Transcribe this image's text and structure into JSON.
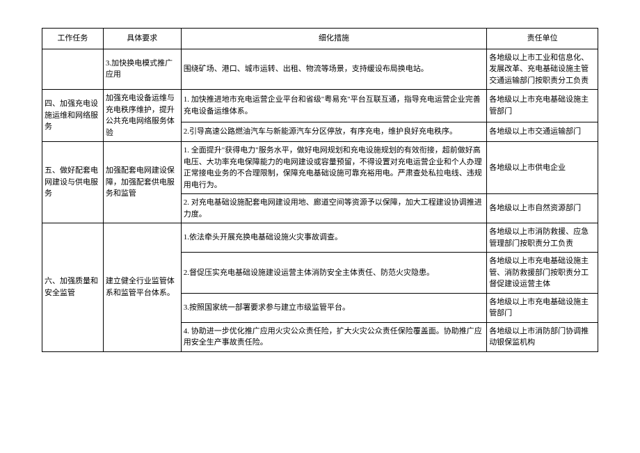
{
  "headers": {
    "task": "工作任务",
    "requirement": "具体要求",
    "measure": "细化措施",
    "unit": "责任单位"
  },
  "rows": [
    {
      "task": "",
      "requirement": "",
      "measure": "3.加快换电模式推广应用",
      "measure_detail": "围绕矿场、港口、城市运转、出租、物流等场景，支持缓设布局换电站。",
      "unit": "各地级以上市工业和信息化、发展改革、充电基础设施主管交通运输部门按职责分工负责"
    },
    {
      "task": "四、加强充电设施运维和网络服务",
      "task_rowspan": 2,
      "requirement": "加强充电设备运维与充电秩序维护，提升公共充电网络服务体验",
      "req_rowspan": 2,
      "measure": "1. 加快推进地市充电运营企业平台和省级\"粤易充\"平台互联互通，指导充电运营企业完善充电设备运维体系。",
      "unit": "各地级以上市充电基础设施主管部门"
    },
    {
      "measure": "2.引导高速公路燃油汽车与新能源汽车分区停放，有序充电，维护良好充电秩序。",
      "unit": "各地级以上市交通运输部门"
    },
    {
      "task": "五、做好配套电网建设与供电服务",
      "task_rowspan": 2,
      "requirement": "加强配套电网建设保障，加强配套供电服务和监管",
      "req_rowspan": 2,
      "measure": "1. 全面提升\"获得电力\"服务水平，做好电网规划和充电设施规划的有效衔接，超前做好高电压、大功率充电保障能力的电网建设或容量预留，不得设置对充电运营企业和个人办理正常接电业务的不合理限制，保障充电基础设施可靠充裕用电。严肃查处私拉电线、违规用电行为。",
      "unit": "各地级以上市供电企业"
    },
    {
      "measure": "2. 对充电基础设施配套电网建设用地、廊道空间等资源予以保障，加大工程建设协调推进力度。",
      "unit": "各地级以上市自然资源部门"
    },
    {
      "task": "六、加强质量和安全监管",
      "task_rowspan": 4,
      "requirement": "建立健全行业监管体系和监管平台体系。",
      "req_rowspan": 4,
      "measure": "1.依法牵头开展充换电基础设施火灾事故调查。",
      "unit": "各地级以上市消防救援、应急管理部门按职责分工负责"
    },
    {
      "measure": "2.督促压实充电基础设施建设运营主体消防安全主体责任、防范火灾隐患。",
      "unit": "各地级以上市充电基础设施主管、消防救援部门按职责分工督促建设运营主体"
    },
    {
      "measure": "3.按照国家统一部署要求参与建立市级监管平台。",
      "unit": "各地级以上市充电基础设施主管部门"
    },
    {
      "measure": "4. 协助进一步优化推广应用火灾公众责任险，扩大火灾公众责任保险覆盖面。协助推广应用安全生产事故责任险。",
      "unit": "各地级以上市消防部门协调推动银保监机构"
    }
  ]
}
